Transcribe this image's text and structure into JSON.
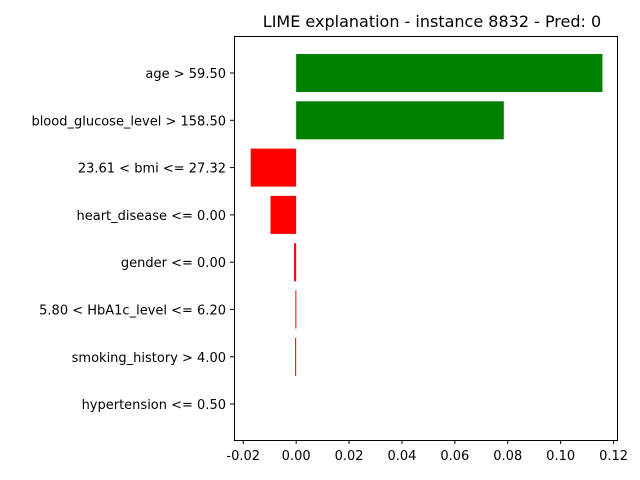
{
  "chart_data": {
    "type": "bar",
    "orientation": "horizontal",
    "title": "LIME explanation - instance 8832 - Pred: 0",
    "xlabel": "",
    "ylabel": "",
    "categories": [
      "age > 59.50",
      "blood_glucose_level > 158.50",
      "23.61 < bmi <= 27.32",
      "heart_disease <= 0.00",
      "gender <= 0.00",
      "5.80 < HbA1c_level <= 6.20",
      "smoking_history > 4.00",
      "hypertension <= 0.50"
    ],
    "values": [
      0.1158,
      0.0785,
      -0.0172,
      -0.0097,
      -0.0008,
      -0.0003,
      -0.0004,
      0.0
    ],
    "xlim": [
      -0.0235,
      0.1213
    ],
    "xticks": [
      "-0.02",
      "0.00",
      "0.02",
      "0.04",
      "0.06",
      "0.08",
      "0.10",
      "0.12"
    ],
    "xtick_values": [
      -0.02,
      0.0,
      0.02,
      0.04,
      0.06,
      0.08,
      0.1,
      0.12
    ],
    "grid": false,
    "colors": {
      "positive": "#008000",
      "negative": "#ff0000",
      "axis": "#000000"
    }
  }
}
